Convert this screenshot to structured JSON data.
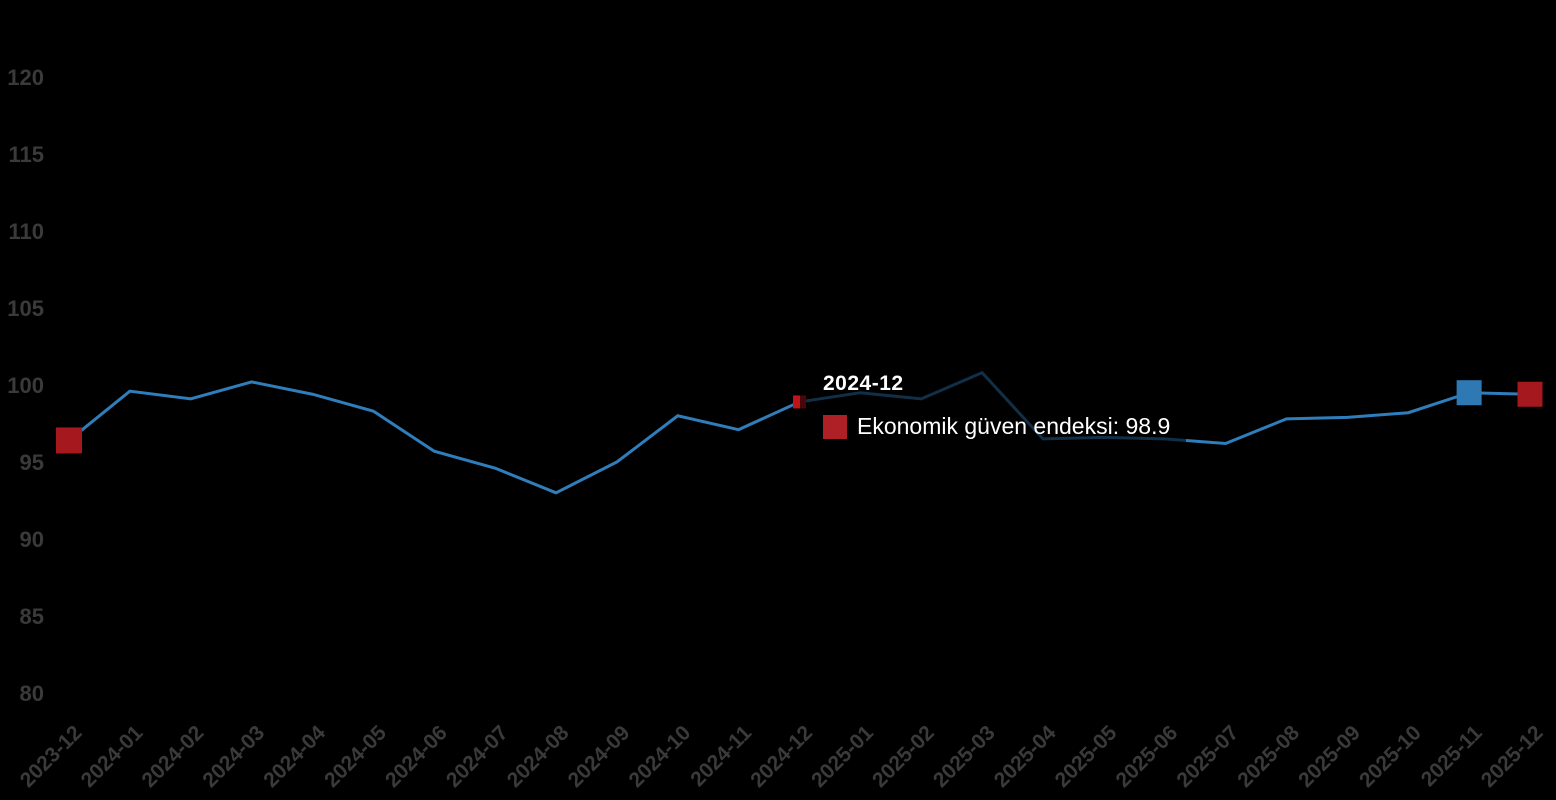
{
  "chart_data": {
    "type": "line",
    "title": "",
    "xlabel": "",
    "ylabel": "",
    "categories": [
      "2023-12",
      "2024-01",
      "2024-02",
      "2024-03",
      "2024-04",
      "2024-05",
      "2024-06",
      "2024-07",
      "2024-08",
      "2024-09",
      "2024-10",
      "2024-11",
      "2024-12",
      "2025-01",
      "2025-02",
      "2025-03",
      "2025-04",
      "2025-05",
      "2025-06",
      "2025-07",
      "2025-08",
      "2025-09",
      "2025-10",
      "2025-11",
      "2025-12"
    ],
    "series": [
      {
        "name": "Ekonomik güven endeksi",
        "values": [
          96.4,
          99.6,
          99.1,
          100.2,
          99.4,
          98.3,
          95.7,
          94.6,
          93.0,
          95.0,
          98.0,
          97.1,
          98.9,
          99.5,
          99.1,
          100.8,
          96.5,
          96.6,
          96.5,
          96.2,
          97.8,
          97.9,
          98.2,
          99.5,
          99.4
        ]
      }
    ],
    "ylim": [
      80,
      120
    ],
    "y_ticks": [
      120,
      115,
      110,
      105,
      100,
      95,
      90,
      85,
      80
    ],
    "grid": false,
    "legend_position": "none",
    "point_markers": [
      {
        "category": "2023-12",
        "kind": "endpoint-marker",
        "color": "#a5181d",
        "size": 26
      },
      {
        "category": "2024-12",
        "kind": "hover-point-marker",
        "color": "#c0141a",
        "size": 13
      },
      {
        "category": "2025-11",
        "kind": "endpoint-marker",
        "color": "#2e79b4",
        "size": 25
      },
      {
        "category": "2025-12",
        "kind": "endpoint-marker",
        "color": "#a5181d",
        "size": 25
      }
    ],
    "tooltip": {
      "title": "2024-12",
      "text": "Ekonomik güven endeksi: 98.9",
      "swatch_color": "#ae2026"
    },
    "colors": {
      "background": "#000000",
      "line": "#2f7dba",
      "tick_label": "#3a3a3a",
      "tooltip_text": "#ffffff"
    }
  }
}
